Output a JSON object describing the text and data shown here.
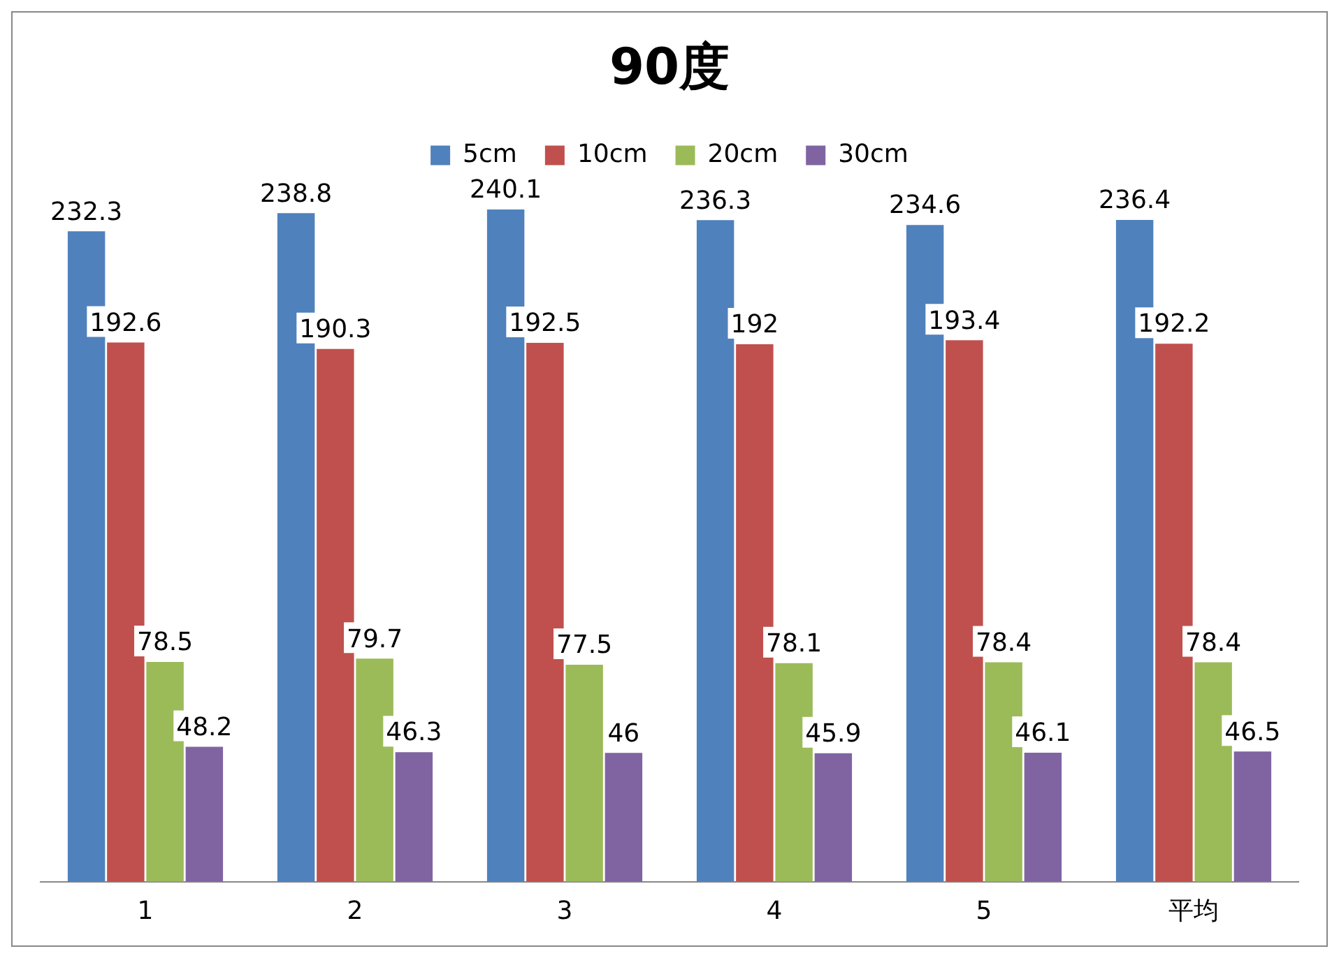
{
  "chart_data": {
    "type": "bar",
    "title": "90度",
    "categories": [
      "1",
      "2",
      "3",
      "4",
      "5",
      "平均"
    ],
    "series": [
      {
        "name": "5cm",
        "color": "#4f81bd",
        "values": [
          232.3,
          238.8,
          240.1,
          236.3,
          234.6,
          236.4
        ]
      },
      {
        "name": "10cm",
        "color": "#c0504d",
        "values": [
          192.6,
          190.3,
          192.5,
          192,
          193.4,
          192.2
        ]
      },
      {
        "name": "20cm",
        "color": "#9bbb59",
        "values": [
          78.5,
          79.7,
          77.5,
          78.1,
          78.4,
          78.4
        ]
      },
      {
        "name": "30cm",
        "color": "#8064a2",
        "values": [
          48.2,
          46.3,
          46,
          45.9,
          46.1,
          46.5
        ]
      }
    ],
    "data_labels": true,
    "legend": "top"
  }
}
